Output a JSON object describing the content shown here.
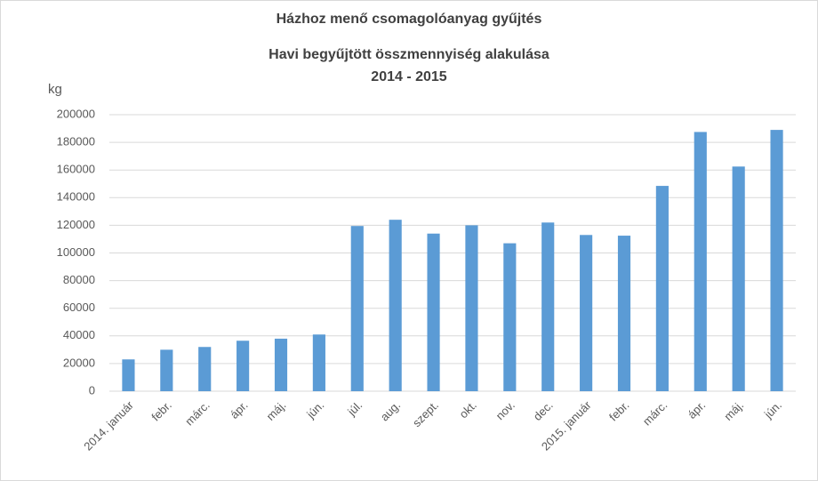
{
  "chart_data": {
    "type": "bar",
    "title": "Házhoz menő csomagolóanyag gyűjtés",
    "subtitle": "Havi begyűjtött összmennyiség alakulása",
    "period": "2014 - 2015",
    "y_label": "kg",
    "categories": [
      "2014. január",
      "febr.",
      "márc.",
      "ápr.",
      "máj.",
      "jún.",
      "júl.",
      "aug.",
      "szept.",
      "okt.",
      "nov.",
      "dec.",
      "2015. január",
      "febr.",
      "márc.",
      "ápr.",
      "máj.",
      "jún."
    ],
    "values": [
      23000,
      30000,
      32000,
      36500,
      38000,
      41000,
      119500,
      124000,
      114000,
      120000,
      107000,
      122000,
      113000,
      112500,
      148500,
      187500,
      162500,
      189000
    ],
    "color": "#5b9bd5",
    "ylim": [
      0,
      200000
    ],
    "yticks": [
      0,
      20000,
      40000,
      60000,
      80000,
      100000,
      120000,
      140000,
      160000,
      180000,
      200000
    ],
    "grid": true
  }
}
